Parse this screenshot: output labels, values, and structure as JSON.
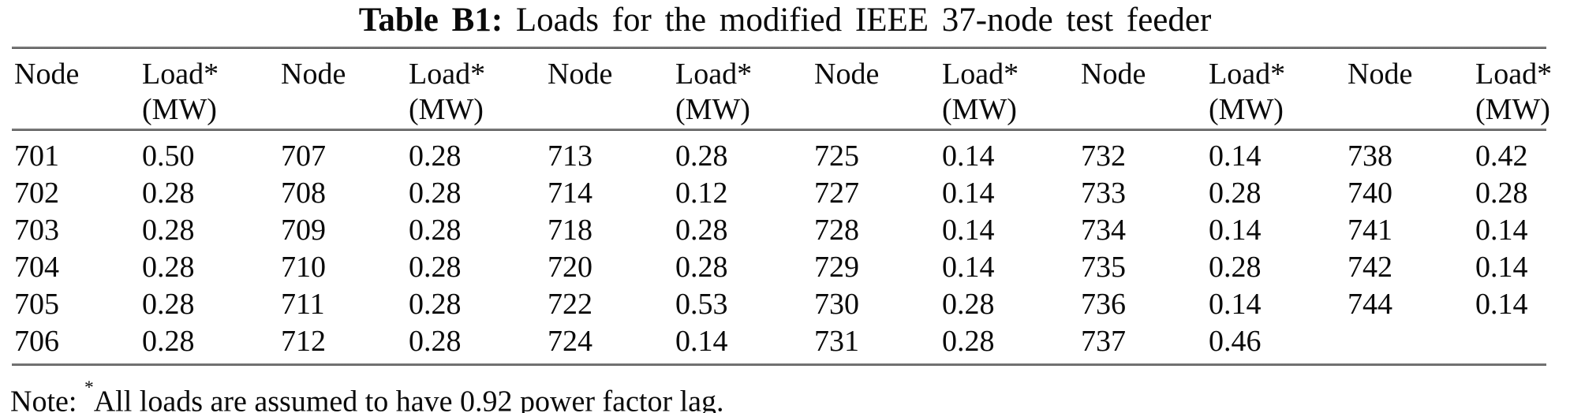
{
  "title": {
    "label": "Table B1:",
    "text": "Loads for the modified IEEE 37-node test feeder"
  },
  "table": {
    "header": {
      "node": "Node",
      "load_line1": "Load*",
      "load_line2": "(MW)"
    },
    "rows": [
      [
        "701",
        "0.50",
        "707",
        "0.28",
        "713",
        "0.28",
        "725",
        "0.14",
        "732",
        "0.14",
        "738",
        "0.42"
      ],
      [
        "702",
        "0.28",
        "708",
        "0.28",
        "714",
        "0.12",
        "727",
        "0.14",
        "733",
        "0.28",
        "740",
        "0.28"
      ],
      [
        "703",
        "0.28",
        "709",
        "0.28",
        "718",
        "0.28",
        "728",
        "0.14",
        "734",
        "0.14",
        "741",
        "0.14"
      ],
      [
        "704",
        "0.28",
        "710",
        "0.28",
        "720",
        "0.28",
        "729",
        "0.14",
        "735",
        "0.28",
        "742",
        "0.14"
      ],
      [
        "705",
        "0.28",
        "711",
        "0.28",
        "722",
        "0.53",
        "730",
        "0.28",
        "736",
        "0.14",
        "744",
        "0.14"
      ],
      [
        "706",
        "0.28",
        "712",
        "0.28",
        "724",
        "0.14",
        "731",
        "0.28",
        "737",
        "0.46",
        "",
        ""
      ]
    ]
  },
  "note": {
    "prefix": "Note: ",
    "asterisk": "*",
    "text": "All loads are assumed to have 0.92 power factor lag."
  }
}
